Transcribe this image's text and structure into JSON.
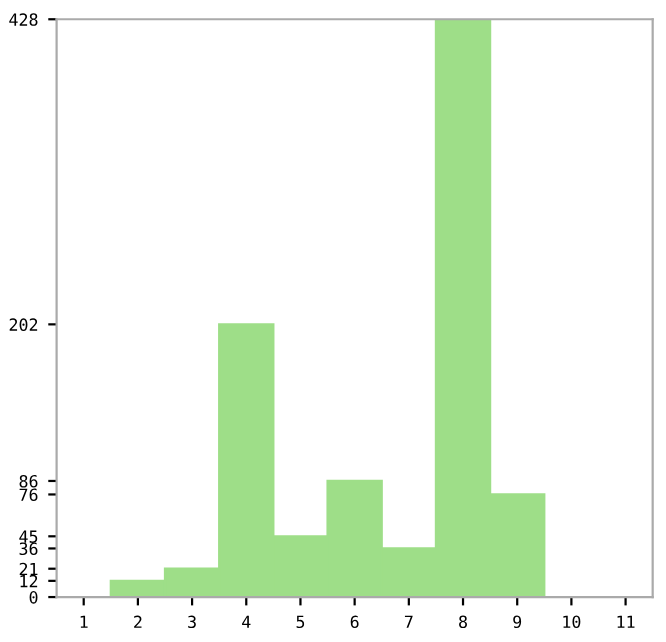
{
  "chart_data": {
    "type": "bar",
    "categories": [
      "1",
      "2",
      "3",
      "4",
      "5",
      "6",
      "7",
      "8",
      "9",
      "10",
      "11"
    ],
    "values": [
      0,
      12,
      21,
      202,
      45,
      86,
      36,
      428,
      76,
      0,
      0
    ],
    "color": "#9ede88",
    "ylim": [
      0,
      428
    ],
    "yticks": [
      0,
      12,
      21,
      36,
      45,
      76,
      86,
      202,
      428
    ],
    "grid": false
  }
}
